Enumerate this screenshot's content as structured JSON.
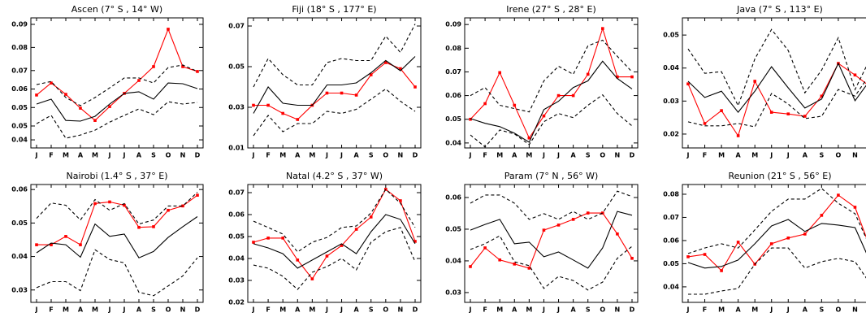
{
  "chart_data": [
    {
      "type": "line",
      "title": "Ascen (7° S , 14° W)",
      "categories": [
        "J",
        "F",
        "M",
        "A",
        "M",
        "J",
        "J",
        "A",
        "S",
        "O",
        "N",
        "D"
      ],
      "ylim": [
        0.0365,
        0.0928
      ],
      "yticks": [
        0.04,
        {
          "value": 0.046,
          "label": "0.05"
        },
        {
          "value": 0.054,
          "label": "0.05"
        },
        {
          "value": 0.062,
          "label": "0.06"
        },
        {
          "value": 0.07,
          "label": "0.07"
        },
        {
          "value": 0.08,
          "label": "0.08"
        },
        {
          "value": 0.09,
          "label": "0.09"
        }
      ],
      "series": [
        {
          "color": "#ff0000",
          "style": "solid",
          "marker": "square",
          "values": [
            0.0594,
            0.0646,
            0.0597,
            0.0537,
            0.0484,
            0.0544,
            0.0601,
            0.0657,
            0.0717,
            0.0879,
            0.0717,
            0.0696
          ]
        },
        {
          "color": "#000000",
          "style": "solid",
          "values": [
            0.0555,
            0.0576,
            0.0484,
            0.0481,
            0.0502,
            0.0555,
            0.0601,
            0.0608,
            0.0576,
            0.0646,
            0.0643,
            0.0622
          ]
        },
        {
          "color": "#000000",
          "style": "dashed",
          "values": [
            0.0639,
            0.0653,
            0.0583,
            0.0548,
            0.0583,
            0.0625,
            0.0668,
            0.0668,
            0.0646,
            0.0713,
            0.0724,
            0.0696
          ]
        },
        {
          "color": "#000000",
          "style": "dashed",
          "values": [
            0.047,
            0.0506,
            0.0407,
            0.0421,
            0.0442,
            0.0477,
            0.0506,
            0.0534,
            0.0509,
            0.0565,
            0.0555,
            0.0562
          ]
        }
      ]
    },
    {
      "type": "line",
      "title": "Fiji (18° S , 177° E)",
      "categories": [
        "J",
        "F",
        "M",
        "A",
        "M",
        "J",
        "J",
        "A",
        "S",
        "O",
        "N",
        "D"
      ],
      "ylim": [
        0.01,
        0.074
      ],
      "yticks": [
        0.01,
        0.03,
        0.05,
        0.07
      ],
      "series": [
        {
          "color": "#ff0000",
          "style": "solid",
          "marker": "square",
          "values": [
            0.031,
            0.031,
            0.027,
            0.024,
            0.031,
            0.037,
            0.037,
            0.036,
            0.046,
            0.052,
            0.049,
            0.04
          ]
        },
        {
          "color": "#000000",
          "style": "solid",
          "values": [
            0.027,
            0.04,
            0.032,
            0.031,
            0.031,
            0.041,
            0.041,
            0.042,
            0.047,
            0.053,
            0.048,
            0.055
          ]
        },
        {
          "color": "#000000",
          "style": "dashed",
          "values": [
            0.04,
            0.054,
            0.046,
            0.041,
            0.041,
            0.052,
            0.054,
            0.053,
            0.053,
            0.065,
            0.057,
            0.071
          ]
        },
        {
          "color": "#000000",
          "style": "dashed",
          "values": [
            0.016,
            0.026,
            0.018,
            0.022,
            0.022,
            0.028,
            0.027,
            0.029,
            0.034,
            0.039,
            0.033,
            0.028
          ]
        }
      ]
    },
    {
      "type": "line",
      "title": "Irene (27° S , 28° E)",
      "categories": [
        "J",
        "F",
        "M",
        "A",
        "M",
        "J",
        "J",
        "A",
        "S",
        "O",
        "N",
        "D"
      ],
      "ylim": [
        0.0379,
        0.0928
      ],
      "yticks": [
        0.04,
        0.05,
        0.06,
        0.07,
        0.08,
        0.09
      ],
      "series": [
        {
          "color": "#ff0000",
          "style": "solid",
          "marker": "square",
          "values": [
            0.05,
            0.0566,
            0.0697,
            0.0559,
            0.0421,
            0.0514,
            0.06,
            0.06,
            0.069,
            0.0883,
            0.0679,
            0.0679
          ]
        },
        {
          "color": "#000000",
          "style": "solid",
          "values": [
            0.0503,
            0.0483,
            0.0469,
            0.0441,
            0.0403,
            0.0541,
            0.0576,
            0.0634,
            0.0662,
            0.0745,
            0.0672,
            0.0628
          ]
        },
        {
          "color": "#000000",
          "style": "dashed",
          "values": [
            0.06,
            0.0634,
            0.0559,
            0.0545,
            0.0531,
            0.0662,
            0.0724,
            0.069,
            0.081,
            0.0834,
            0.0766,
            0.07
          ]
        },
        {
          "color": "#000000",
          "style": "dashed",
          "values": [
            0.0434,
            0.0383,
            0.0455,
            0.0438,
            0.0393,
            0.049,
            0.0524,
            0.0507,
            0.0559,
            0.0603,
            0.0524,
            0.0472
          ]
        }
      ]
    },
    {
      "type": "line",
      "title": "Java (7° S , 113° E)",
      "categories": [
        "J",
        "F",
        "M",
        "A",
        "M",
        "J",
        "J",
        "A",
        "S",
        "O",
        "N",
        "D"
      ],
      "ylim": [
        0.0158,
        0.0552
      ],
      "yticks": [
        0.02,
        0.03,
        0.04,
        0.05
      ],
      "series": [
        {
          "color": "#ff0000",
          "style": "solid",
          "marker": "square",
          "values": [
            0.0352,
            0.0232,
            0.0271,
            0.0195,
            0.036,
            0.0266,
            0.0261,
            0.0254,
            0.0315,
            0.0414,
            0.0379,
            0.034
          ]
        },
        {
          "color": "#000000",
          "style": "solid",
          "values": [
            0.036,
            0.0311,
            0.033,
            0.0266,
            0.033,
            0.0404,
            0.034,
            0.0279,
            0.0306,
            0.0414,
            0.0301,
            0.037
          ]
        },
        {
          "color": "#000000",
          "style": "dashed",
          "values": [
            0.0458,
            0.0384,
            0.0389,
            0.0286,
            0.0428,
            0.0517,
            0.0453,
            0.0325,
            0.0394,
            0.0492,
            0.0335,
            0.0438
          ]
        },
        {
          "color": "#000000",
          "style": "dashed",
          "values": [
            0.0237,
            0.0225,
            0.0225,
            0.0232,
            0.0222,
            0.0323,
            0.0291,
            0.0247,
            0.0254,
            0.0335,
            0.0315,
            0.0389
          ]
        }
      ]
    },
    {
      "type": "line",
      "title": "Nairobi (1.4° S , 37° E)",
      "categories": [
        "J",
        "F",
        "M",
        "A",
        "M",
        "J",
        "J",
        "A",
        "S",
        "O",
        "N",
        "D"
      ],
      "ylim": [
        0.0263,
        0.0615
      ],
      "yticks": [
        0.03,
        0.04,
        0.05,
        0.06
      ],
      "series": [
        {
          "color": "#ff0000",
          "style": "solid",
          "marker": "square",
          "values": [
            0.0435,
            0.0435,
            0.046,
            0.0435,
            0.0558,
            0.0563,
            0.0553,
            0.0487,
            0.0489,
            0.0538,
            0.0551,
            0.0583
          ]
        },
        {
          "color": "#000000",
          "style": "solid",
          "values": [
            0.0411,
            0.044,
            0.0435,
            0.0398,
            0.0497,
            0.046,
            0.0467,
            0.0396,
            0.0415,
            0.0457,
            0.0489,
            0.0519
          ]
        },
        {
          "color": "#000000",
          "style": "dashed",
          "values": [
            0.0514,
            0.056,
            0.0553,
            0.0509,
            0.057,
            0.0538,
            0.0558,
            0.0497,
            0.0509,
            0.0551,
            0.0551,
            0.0592
          ]
        },
        {
          "color": "#000000",
          "style": "dashed",
          "values": [
            0.0307,
            0.0325,
            0.0325,
            0.0298,
            0.042,
            0.0391,
            0.0381,
            0.0293,
            0.0283,
            0.0312,
            0.0342,
            0.0396
          ]
        }
      ]
    },
    {
      "type": "line",
      "title": "Natal (4.2° S , 37° W)",
      "categories": [
        "J",
        "F",
        "M",
        "A",
        "M",
        "J",
        "J",
        "A",
        "S",
        "O",
        "N",
        "D"
      ],
      "ylim": [
        0.02,
        0.0737
      ],
      "yticks": [
        0.02,
        0.03,
        0.04,
        0.05,
        0.06,
        0.07
      ],
      "series": [
        {
          "color": "#ff0000",
          "style": "solid",
          "marker": "square",
          "values": [
            0.0474,
            0.0493,
            0.0493,
            0.0393,
            0.0307,
            0.0411,
            0.0459,
            0.0533,
            0.0589,
            0.0715,
            0.0663,
            0.0478
          ]
        },
        {
          "color": "#000000",
          "style": "solid",
          "values": [
            0.0467,
            0.0448,
            0.0422,
            0.0356,
            0.0393,
            0.043,
            0.0467,
            0.0422,
            0.0522,
            0.06,
            0.0578,
            0.0467
          ]
        },
        {
          "color": "#000000",
          "style": "dashed",
          "values": [
            0.057,
            0.0541,
            0.0511,
            0.043,
            0.0474,
            0.0496,
            0.0541,
            0.0548,
            0.0607,
            0.0715,
            0.0652,
            0.0541
          ]
        },
        {
          "color": "#000000",
          "style": "dashed",
          "values": [
            0.037,
            0.0356,
            0.0319,
            0.0259,
            0.0337,
            0.0363,
            0.04,
            0.0348,
            0.0474,
            0.0522,
            0.0541,
            0.0385
          ]
        }
      ]
    },
    {
      "type": "line",
      "title": "Param (7° N , 56° W)",
      "categories": [
        "J",
        "F",
        "M",
        "A",
        "M",
        "J",
        "J",
        "A",
        "S",
        "O",
        "N",
        "D"
      ],
      "ylim": [
        0.0269,
        0.0641
      ],
      "yticks": [
        0.03,
        0.04,
        0.05,
        0.06
      ],
      "series": [
        {
          "color": "#ff0000",
          "style": "solid",
          "marker": "square",
          "values": [
            0.0382,
            0.0441,
            0.0403,
            0.039,
            0.0377,
            0.0497,
            0.0513,
            0.0531,
            0.0551,
            0.0551,
            0.0485,
            0.0408
          ]
        },
        {
          "color": "#000000",
          "style": "solid",
          "values": [
            0.0497,
            0.0515,
            0.0531,
            0.0454,
            0.0459,
            0.0413,
            0.0428,
            0.0403,
            0.0377,
            0.0441,
            0.0556,
            0.0544
          ]
        },
        {
          "color": "#000000",
          "style": "dashed",
          "values": [
            0.0582,
            0.0608,
            0.0608,
            0.0582,
            0.0531,
            0.0549,
            0.0531,
            0.0556,
            0.0531,
            0.0551,
            0.062,
            0.0603
          ]
        },
        {
          "color": "#000000",
          "style": "dashed",
          "values": [
            0.0436,
            0.0454,
            0.0479,
            0.0397,
            0.0385,
            0.0313,
            0.0351,
            0.0338,
            0.0308,
            0.0333,
            0.0408,
            0.0446
          ]
        }
      ]
    },
    {
      "type": "line",
      "title": "Reunion (21° S , 56° E)",
      "categories": [
        "J",
        "F",
        "M",
        "A",
        "M",
        "J",
        "J",
        "A",
        "S",
        "O",
        "N",
        "D"
      ],
      "ylim": [
        0.0333,
        0.0842
      ],
      "yticks": [
        0.04,
        0.05,
        0.06,
        0.07,
        0.08
      ],
      "series": [
        {
          "color": "#ff0000",
          "style": "solid",
          "marker": "square",
          "values": [
            0.053,
            0.054,
            0.047,
            0.0593,
            0.0498,
            0.0586,
            0.0611,
            0.0628,
            0.0709,
            0.0796,
            0.0744,
            0.0551
          ]
        },
        {
          "color": "#000000",
          "style": "solid",
          "values": [
            0.0505,
            0.0481,
            0.0488,
            0.0516,
            0.0586,
            0.0663,
            0.0691,
            0.0639,
            0.0674,
            0.0667,
            0.0656,
            0.0495
          ]
        },
        {
          "color": "#000000",
          "style": "dashed",
          "values": [
            0.0544,
            0.0568,
            0.0586,
            0.0568,
            0.0646,
            0.0726,
            0.0779,
            0.0779,
            0.0825,
            0.0761,
            0.0716,
            0.0558
          ]
        },
        {
          "color": "#000000",
          "style": "dashed",
          "values": [
            0.0368,
            0.0368,
            0.0382,
            0.0393,
            0.0498,
            0.0568,
            0.0568,
            0.0481,
            0.0509,
            0.0523,
            0.0509,
            0.0404
          ]
        }
      ]
    }
  ]
}
